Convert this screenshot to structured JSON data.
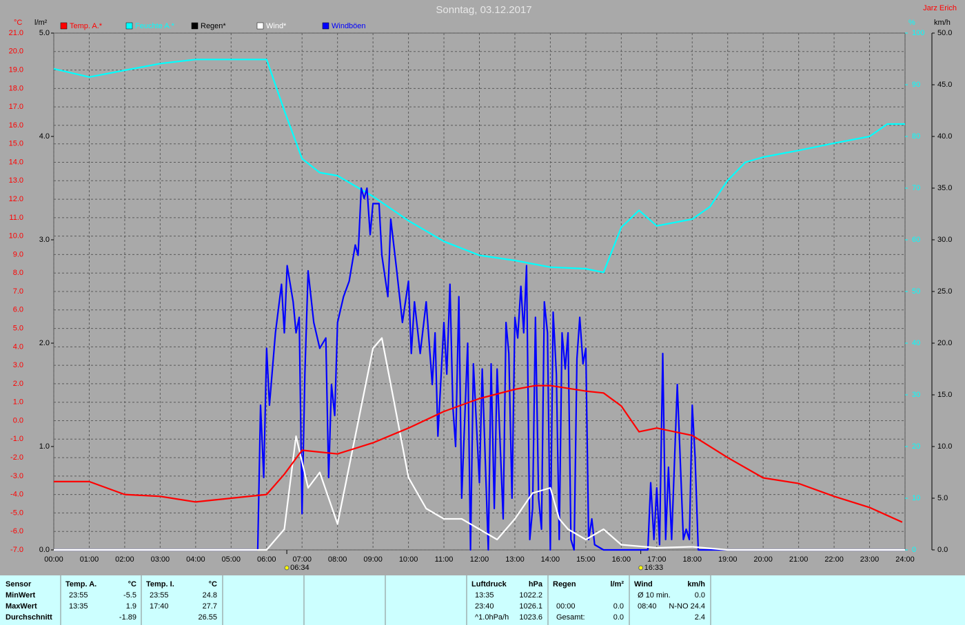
{
  "chart_data": {
    "type": "line",
    "title": "Sonntag, 03.12.2017",
    "author": "Jarz Erich",
    "units": {
      "temp": "°C",
      "rain": "l/m²",
      "humidity": "%",
      "wind": "km/h"
    },
    "xlim": [
      0,
      24
    ],
    "xticks": [
      {
        "value": 0,
        "label": "00:00"
      },
      {
        "value": 1,
        "label": "01:00"
      },
      {
        "value": 2,
        "label": "02:00"
      },
      {
        "value": 3,
        "label": "03:00"
      },
      {
        "value": 4,
        "label": "04:00"
      },
      {
        "value": 5,
        "label": "05:00"
      },
      {
        "value": 6,
        "label": "06:00"
      },
      {
        "value": 7,
        "label": "07:00"
      },
      {
        "value": 8,
        "label": "08:00"
      },
      {
        "value": 9,
        "label": "09:00"
      },
      {
        "value": 10,
        "label": "10:00"
      },
      {
        "value": 11,
        "label": "11:00"
      },
      {
        "value": 12,
        "label": "12:00"
      },
      {
        "value": 13,
        "label": "13:00"
      },
      {
        "value": 14,
        "label": "14:00"
      },
      {
        "value": 15,
        "label": "15:00"
      },
      {
        "value": 16,
        "label": "16:00"
      },
      {
        "value": 17,
        "label": "17:00"
      },
      {
        "value": 18,
        "label": "18:00"
      },
      {
        "value": 19,
        "label": "19:00"
      },
      {
        "value": 20,
        "label": "20:00"
      },
      {
        "value": 21,
        "label": "21:00"
      },
      {
        "value": 22,
        "label": "22:00"
      },
      {
        "value": 23,
        "label": "23:00"
      },
      {
        "value": 24,
        "label": "24:00"
      }
    ],
    "ylim": [
      -7,
      21
    ],
    "yticks": [
      {
        "value": -7,
        "label": "-7.0"
      },
      {
        "value": -6,
        "label": "-6.0"
      },
      {
        "value": -5,
        "label": "-5.0"
      },
      {
        "value": -4,
        "label": "-4.0"
      },
      {
        "value": -3,
        "label": "-3.0"
      },
      {
        "value": -2,
        "label": "-2.0"
      },
      {
        "value": -1,
        "label": "-1.0"
      },
      {
        "value": 0,
        "label": "0.0"
      },
      {
        "value": 1,
        "label": "1.0"
      },
      {
        "value": 2,
        "label": "2.0"
      },
      {
        "value": 3,
        "label": "3.0"
      },
      {
        "value": 4,
        "label": "4.0"
      },
      {
        "value": 5,
        "label": "5.0"
      },
      {
        "value": 6,
        "label": "6.0"
      },
      {
        "value": 7,
        "label": "7.0"
      },
      {
        "value": 8,
        "label": "8.0"
      },
      {
        "value": 9,
        "label": "9.0"
      },
      {
        "value": 10,
        "label": "10.0"
      },
      {
        "value": 11,
        "label": "11.0"
      },
      {
        "value": 12,
        "label": "12.0"
      },
      {
        "value": 13,
        "label": "13.0"
      },
      {
        "value": 14,
        "label": "14.0"
      },
      {
        "value": 15,
        "label": "15.0"
      },
      {
        "value": 16,
        "label": "16.0"
      },
      {
        "value": 17,
        "label": "17.0"
      },
      {
        "value": 18,
        "label": "18.0"
      },
      {
        "value": 19,
        "label": "19.0"
      },
      {
        "value": 20,
        "label": "20.0"
      },
      {
        "value": 21,
        "label": "21.0"
      }
    ],
    "rainlim": [
      0,
      5
    ],
    "rainticks": [
      {
        "value": 0,
        "label": "0.0"
      },
      {
        "value": 1,
        "label": "1.0"
      },
      {
        "value": 2,
        "label": "2.0"
      },
      {
        "value": 3,
        "label": "3.0"
      },
      {
        "value": 4,
        "label": "4.0"
      },
      {
        "value": 5,
        "label": "5.0"
      }
    ],
    "y2lim": [
      0,
      100
    ],
    "y2ticks": [
      0,
      10,
      20,
      30,
      40,
      50,
      60,
      70,
      80,
      90,
      100
    ],
    "y3lim": [
      0,
      50
    ],
    "y3ticks": [
      {
        "value": 0,
        "label": "0.0"
      },
      {
        "value": 5,
        "label": "5.0"
      },
      {
        "value": 10,
        "label": "10.0"
      },
      {
        "value": 15,
        "label": "15.0"
      },
      {
        "value": 20,
        "label": "20.0"
      },
      {
        "value": 25,
        "label": "25.0"
      },
      {
        "value": 30,
        "label": "30.0"
      },
      {
        "value": 35,
        "label": "35.0"
      },
      {
        "value": 40,
        "label": "40.0"
      },
      {
        "value": 45,
        "label": "45.0"
      },
      {
        "value": 50,
        "label": "50.0"
      }
    ],
    "grid": true,
    "sun_markers": [
      {
        "value": 6.57,
        "label": "06:34"
      },
      {
        "value": 16.55,
        "label": "16:33"
      }
    ],
    "series": [
      {
        "name": "Temp. A.*",
        "color": "#ff0000",
        "axis": "y",
        "x": [
          0,
          1,
          2,
          3,
          4,
          5,
          6,
          6.5,
          7,
          8,
          9,
          10,
          11,
          12,
          13,
          13.58,
          14,
          15,
          15.5,
          16,
          16.5,
          17,
          18,
          19,
          20,
          21,
          22,
          23,
          23.92
        ],
        "values": [
          -3.3,
          -3.3,
          -4.0,
          -4.1,
          -4.4,
          -4.2,
          -4.0,
          -2.9,
          -1.6,
          -1.8,
          -1.2,
          -0.4,
          0.5,
          1.2,
          1.7,
          1.9,
          1.9,
          1.6,
          1.5,
          0.8,
          -0.6,
          -0.4,
          -0.8,
          -2.0,
          -3.1,
          -3.4,
          -4.1,
          -4.7,
          -5.5
        ]
      },
      {
        "name": "Feuchte A.*",
        "color": "#00ffff",
        "axis": "y2",
        "x": [
          0,
          1,
          2,
          3,
          4,
          5,
          6,
          6.5,
          7,
          7.5,
          8,
          9,
          10,
          11,
          12,
          13,
          14,
          15,
          15.5,
          16,
          16.5,
          17,
          18,
          18.5,
          19,
          19.5,
          20,
          21,
          22,
          23,
          23.5,
          24
        ],
        "values": [
          93.1,
          91.5,
          92.8,
          94.1,
          94.9,
          94.9,
          94.9,
          85,
          75.7,
          73,
          72.4,
          68.4,
          63.7,
          59.7,
          57,
          56,
          54.7,
          54.4,
          53.7,
          62.4,
          65.7,
          62.7,
          64,
          66.4,
          71.5,
          75,
          76,
          77.3,
          78.7,
          80,
          82.4,
          82.4
        ]
      },
      {
        "name": "Regen*",
        "color": "#000000",
        "axis": "rain"
      },
      {
        "name": "Wind*",
        "color": "#ffffff",
        "axis": "y3",
        "x": [
          0,
          6,
          6.5,
          6.83,
          7.17,
          7.5,
          8,
          8.5,
          9,
          9.25,
          9.5,
          10,
          10.5,
          11,
          11.5,
          12,
          12.5,
          13,
          13.5,
          14,
          14.25,
          14.5,
          15,
          15.5,
          16,
          17,
          18,
          19,
          24
        ],
        "values": [
          0,
          0,
          2,
          11,
          6,
          7.5,
          2.5,
          11,
          19.5,
          20.5,
          16,
          7,
          4,
          3,
          3,
          2,
          1,
          3,
          5.5,
          6,
          3,
          2,
          1,
          2,
          0.5,
          0.2,
          0.3,
          0,
          0
        ]
      },
      {
        "name": "Windböen",
        "color": "#0000ff",
        "axis": "y3",
        "x": [
          0,
          5.75,
          5.83,
          5.92,
          6,
          6.08,
          6.25,
          6.42,
          6.5,
          6.58,
          6.75,
          6.83,
          6.92,
          7,
          7.08,
          7.17,
          7.33,
          7.5,
          7.67,
          7.75,
          7.83,
          7.92,
          8,
          8.17,
          8.33,
          8.5,
          8.58,
          8.67,
          8.75,
          8.83,
          8.92,
          9,
          9.17,
          9.25,
          9.42,
          9.5,
          9.67,
          9.83,
          10,
          10.08,
          10.17,
          10.33,
          10.5,
          10.67,
          10.75,
          10.83,
          11,
          11.08,
          11.17,
          11.25,
          11.33,
          11.42,
          11.5,
          11.67,
          11.75,
          11.83,
          12,
          12.08,
          12.25,
          12.33,
          12.42,
          12.5,
          12.67,
          12.75,
          12.83,
          12.92,
          13,
          13.08,
          13.17,
          13.25,
          13.33,
          13.42,
          13.5,
          13.58,
          13.67,
          13.75,
          13.83,
          13.92,
          14,
          14.08,
          14.17,
          14.25,
          14.33,
          14.42,
          14.5,
          14.58,
          14.67,
          14.75,
          14.83,
          14.92,
          15,
          15.08,
          15.17,
          15.25,
          15.5,
          16.75,
          16.83,
          16.92,
          17,
          17.08,
          17.17,
          17.25,
          17.33,
          17.42,
          17.58,
          17.67,
          17.75,
          17.83,
          17.92,
          18,
          18.08,
          18.17,
          24
        ],
        "values": [
          0,
          0,
          14,
          7,
          19.5,
          14,
          21,
          25.7,
          21,
          27.5,
          24,
          21,
          22.5,
          3.5,
          17,
          27,
          22,
          19.5,
          20.5,
          7,
          16,
          13,
          22,
          24.5,
          26,
          29.5,
          28.5,
          35,
          34,
          35,
          30.5,
          33.5,
          33.5,
          28.5,
          24.5,
          32,
          27,
          22,
          26,
          19,
          24,
          19,
          24,
          16,
          21,
          11,
          22,
          17,
          25.7,
          14,
          10,
          24.5,
          5,
          20,
          0,
          18,
          6.5,
          17.5,
          0,
          18,
          4,
          17.5,
          3,
          22,
          19,
          5,
          22.5,
          20.5,
          25.5,
          21,
          27.5,
          1,
          4,
          22.5,
          5,
          2,
          24,
          21,
          0,
          23,
          17,
          1,
          21,
          17.5,
          21,
          1,
          0,
          18.5,
          22.5,
          18,
          19.5,
          1,
          3,
          0.5,
          0,
          0,
          6.5,
          1,
          6,
          0.5,
          19,
          1,
          8,
          1,
          16,
          8,
          1,
          2,
          1,
          14,
          9,
          0,
          0
        ]
      }
    ]
  },
  "stats": {
    "labels": [
      "Sensor",
      "MinWert",
      "MaxWert",
      "Durchschnitt"
    ],
    "panels": [
      {
        "title": "Temp. A.",
        "unit": "°C",
        "rows": [
          [
            "23:55",
            "-5.5"
          ],
          [
            "13:35",
            "1.9"
          ],
          [
            "-1.89"
          ]
        ]
      },
      {
        "title": "Temp. I.",
        "unit": "°C",
        "rows": [
          [
            "23:55",
            "24.8"
          ],
          [
            "17:40",
            "27.7"
          ],
          [
            "26.55"
          ]
        ]
      },
      {
        "title": "Luftdruck",
        "unit": "hPa",
        "rows": [
          [
            "13:35",
            "1022.2"
          ],
          [
            "23:40",
            "1026.1"
          ],
          [
            "^1.0hPa/h",
            "1023.6"
          ]
        ]
      },
      {
        "title": "Regen",
        "unit": "l/m²",
        "rows": [
          [],
          [
            "00:00",
            "0.0"
          ],
          [
            "Gesamt:",
            "0.0"
          ]
        ]
      },
      {
        "title": "Wind",
        "unit": "km/h",
        "rows": [
          [
            "Ø 10 min.",
            "0.0"
          ],
          [
            "08:40",
            "N-NO 24.4"
          ],
          [
            "2.4"
          ]
        ]
      }
    ]
  }
}
